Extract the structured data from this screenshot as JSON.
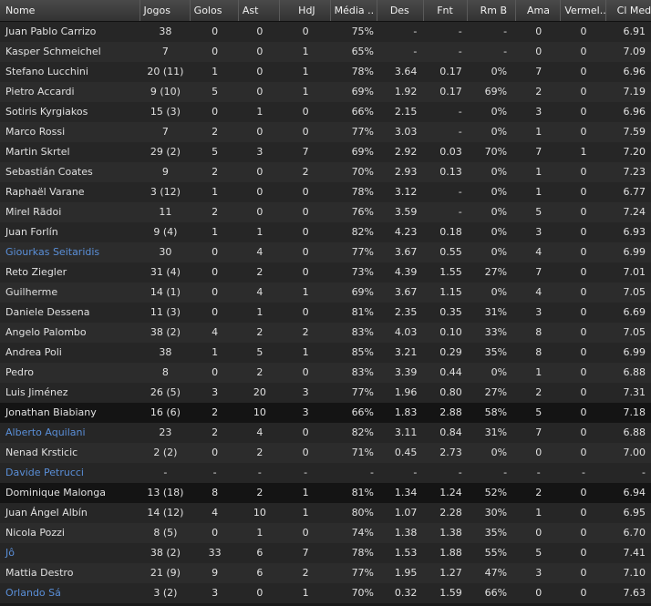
{
  "columns": [
    "Nome",
    "Jogos",
    "Golos",
    "Ast",
    "HdJ",
    "Média ..",
    "Des",
    "Fnt",
    "Rm B",
    "Ama",
    "Vermel..",
    "Cl Med"
  ],
  "rows": [
    {
      "name": "Juan Pablo Carrizo",
      "jogos": "38",
      "golos": "0",
      "ast": "0",
      "hdj": "0",
      "media": "75%",
      "des": "-",
      "fnt": "-",
      "rmb": "-",
      "ama": "0",
      "vermel": "0",
      "clmed": "6.91",
      "link": false
    },
    {
      "name": "Kasper Schmeichel",
      "jogos": "7",
      "golos": "0",
      "ast": "0",
      "hdj": "1",
      "media": "65%",
      "des": "-",
      "fnt": "-",
      "rmb": "-",
      "ama": "0",
      "vermel": "0",
      "clmed": "7.09",
      "link": false
    },
    {
      "name": "Stefano Lucchini",
      "jogos": "20 (11)",
      "golos": "1",
      "ast": "0",
      "hdj": "1",
      "media": "78%",
      "des": "3.64",
      "fnt": "0.17",
      "rmb": "0%",
      "ama": "7",
      "vermel": "0",
      "clmed": "6.96",
      "link": false
    },
    {
      "name": "Pietro Accardi",
      "jogos": "9 (10)",
      "golos": "5",
      "ast": "0",
      "hdj": "1",
      "media": "69%",
      "des": "1.92",
      "fnt": "0.17",
      "rmb": "69%",
      "ama": "2",
      "vermel": "0",
      "clmed": "7.19",
      "link": false
    },
    {
      "name": "Sotiris Kyrgiakos",
      "jogos": "15 (3)",
      "golos": "0",
      "ast": "1",
      "hdj": "0",
      "media": "66%",
      "des": "2.15",
      "fnt": "-",
      "rmb": "0%",
      "ama": "3",
      "vermel": "0",
      "clmed": "6.96",
      "link": false
    },
    {
      "name": "Marco Rossi",
      "jogos": "7",
      "golos": "2",
      "ast": "0",
      "hdj": "0",
      "media": "77%",
      "des": "3.03",
      "fnt": "-",
      "rmb": "0%",
      "ama": "1",
      "vermel": "0",
      "clmed": "7.59",
      "link": false
    },
    {
      "name": "Martin Skrtel",
      "jogos": "29 (2)",
      "golos": "5",
      "ast": "3",
      "hdj": "7",
      "media": "69%",
      "des": "2.92",
      "fnt": "0.03",
      "rmb": "70%",
      "ama": "7",
      "vermel": "1",
      "clmed": "7.20",
      "link": false
    },
    {
      "name": "Sebastián Coates",
      "jogos": "9",
      "golos": "2",
      "ast": "0",
      "hdj": "2",
      "media": "70%",
      "des": "2.93",
      "fnt": "0.13",
      "rmb": "0%",
      "ama": "1",
      "vermel": "0",
      "clmed": "7.23",
      "link": false
    },
    {
      "name": "Raphaël Varane",
      "jogos": "3 (12)",
      "golos": "1",
      "ast": "0",
      "hdj": "0",
      "media": "78%",
      "des": "3.12",
      "fnt": "-",
      "rmb": "0%",
      "ama": "1",
      "vermel": "0",
      "clmed": "6.77",
      "link": false
    },
    {
      "name": "Mirel Rădoi",
      "jogos": "11",
      "golos": "2",
      "ast": "0",
      "hdj": "0",
      "media": "76%",
      "des": "3.59",
      "fnt": "-",
      "rmb": "0%",
      "ama": "5",
      "vermel": "0",
      "clmed": "7.24",
      "link": false
    },
    {
      "name": "Juan Forlín",
      "jogos": "9 (4)",
      "golos": "1",
      "ast": "1",
      "hdj": "0",
      "media": "82%",
      "des": "4.23",
      "fnt": "0.18",
      "rmb": "0%",
      "ama": "3",
      "vermel": "0",
      "clmed": "6.93",
      "link": false
    },
    {
      "name": "Giourkas Seitaridis",
      "jogos": "30",
      "golos": "0",
      "ast": "4",
      "hdj": "0",
      "media": "77%",
      "des": "3.67",
      "fnt": "0.55",
      "rmb": "0%",
      "ama": "4",
      "vermel": "0",
      "clmed": "6.99",
      "link": true
    },
    {
      "name": "Reto Ziegler",
      "jogos": "31 (4)",
      "golos": "0",
      "ast": "2",
      "hdj": "0",
      "media": "73%",
      "des": "4.39",
      "fnt": "1.55",
      "rmb": "27%",
      "ama": "7",
      "vermel": "0",
      "clmed": "7.01",
      "link": false
    },
    {
      "name": "Guilherme",
      "jogos": "14 (1)",
      "golos": "0",
      "ast": "4",
      "hdj": "1",
      "media": "69%",
      "des": "3.67",
      "fnt": "1.15",
      "rmb": "0%",
      "ama": "4",
      "vermel": "0",
      "clmed": "7.05",
      "link": false
    },
    {
      "name": "Daniele Dessena",
      "jogos": "11 (3)",
      "golos": "0",
      "ast": "1",
      "hdj": "0",
      "media": "81%",
      "des": "2.35",
      "fnt": "0.35",
      "rmb": "31%",
      "ama": "3",
      "vermel": "0",
      "clmed": "6.69",
      "link": false
    },
    {
      "name": "Angelo Palombo",
      "jogos": "38 (2)",
      "golos": "4",
      "ast": "2",
      "hdj": "2",
      "media": "83%",
      "des": "4.03",
      "fnt": "0.10",
      "rmb": "33%",
      "ama": "8",
      "vermel": "0",
      "clmed": "7.05",
      "link": false
    },
    {
      "name": "Andrea Poli",
      "jogos": "38",
      "golos": "1",
      "ast": "5",
      "hdj": "1",
      "media": "85%",
      "des": "3.21",
      "fnt": "0.29",
      "rmb": "35%",
      "ama": "8",
      "vermel": "0",
      "clmed": "6.99",
      "link": false
    },
    {
      "name": "Pedro",
      "jogos": "8",
      "golos": "0",
      "ast": "2",
      "hdj": "0",
      "media": "83%",
      "des": "3.39",
      "fnt": "0.44",
      "rmb": "0%",
      "ama": "1",
      "vermel": "0",
      "clmed": "6.88",
      "link": false
    },
    {
      "name": "Luis Jiménez",
      "jogos": "26 (5)",
      "golos": "3",
      "ast": "20",
      "hdj": "3",
      "media": "77%",
      "des": "1.96",
      "fnt": "0.80",
      "rmb": "27%",
      "ama": "2",
      "vermel": "0",
      "clmed": "7.31",
      "link": false
    },
    {
      "name": "Jonathan Biabiany",
      "jogos": "16 (6)",
      "golos": "2",
      "ast": "10",
      "hdj": "3",
      "media": "66%",
      "des": "1.83",
      "fnt": "2.88",
      "rmb": "58%",
      "ama": "5",
      "vermel": "0",
      "clmed": "7.18",
      "link": false,
      "selected": true
    },
    {
      "name": "Alberto Aquilani",
      "jogos": "23",
      "golos": "2",
      "ast": "4",
      "hdj": "0",
      "media": "82%",
      "des": "3.11",
      "fnt": "0.84",
      "rmb": "31%",
      "ama": "7",
      "vermel": "0",
      "clmed": "6.88",
      "link": true
    },
    {
      "name": "Nenad Krsticic",
      "jogos": "2 (2)",
      "golos": "0",
      "ast": "2",
      "hdj": "0",
      "media": "71%",
      "des": "0.45",
      "fnt": "2.73",
      "rmb": "0%",
      "ama": "0",
      "vermel": "0",
      "clmed": "7.00",
      "link": false
    },
    {
      "name": "Davide Petrucci",
      "jogos": "-",
      "golos": "-",
      "ast": "-",
      "hdj": "-",
      "media": "-",
      "des": "-",
      "fnt": "-",
      "rmb": "-",
      "ama": "-",
      "vermel": "-",
      "clmed": "-",
      "link": true
    },
    {
      "name": "Dominique Malonga",
      "jogos": "13 (18)",
      "golos": "8",
      "ast": "2",
      "hdj": "1",
      "media": "81%",
      "des": "1.34",
      "fnt": "1.24",
      "rmb": "52%",
      "ama": "2",
      "vermel": "0",
      "clmed": "6.94",
      "link": false,
      "selected": true
    },
    {
      "name": "Juan Ángel Albín",
      "jogos": "14 (12)",
      "golos": "4",
      "ast": "10",
      "hdj": "1",
      "media": "80%",
      "des": "1.07",
      "fnt": "2.28",
      "rmb": "30%",
      "ama": "1",
      "vermel": "0",
      "clmed": "6.95",
      "link": false
    },
    {
      "name": "Nicola Pozzi",
      "jogos": "8 (5)",
      "golos": "0",
      "ast": "1",
      "hdj": "0",
      "media": "74%",
      "des": "1.38",
      "fnt": "1.38",
      "rmb": "35%",
      "ama": "0",
      "vermel": "0",
      "clmed": "6.70",
      "link": false
    },
    {
      "name": "Jô",
      "jogos": "38 (2)",
      "golos": "33",
      "ast": "6",
      "hdj": "7",
      "media": "78%",
      "des": "1.53",
      "fnt": "1.88",
      "rmb": "55%",
      "ama": "5",
      "vermel": "0",
      "clmed": "7.41",
      "link": true
    },
    {
      "name": "Mattia Destro",
      "jogos": "21 (9)",
      "golos": "9",
      "ast": "6",
      "hdj": "2",
      "media": "77%",
      "des": "1.95",
      "fnt": "1.27",
      "rmb": "47%",
      "ama": "3",
      "vermel": "0",
      "clmed": "7.10",
      "link": false
    },
    {
      "name": "Orlando Sá",
      "jogos": "3 (2)",
      "golos": "3",
      "ast": "0",
      "hdj": "1",
      "media": "70%",
      "des": "0.32",
      "fnt": "1.59",
      "rmb": "66%",
      "ama": "0",
      "vermel": "0",
      "clmed": "7.63",
      "link": true
    }
  ],
  "colors": {
    "link": "#5a8fd8",
    "header_bg": "#3d3d3d",
    "row_even": "#262626",
    "row_odd": "#2c2c2c",
    "row_selected": "#141414"
  }
}
